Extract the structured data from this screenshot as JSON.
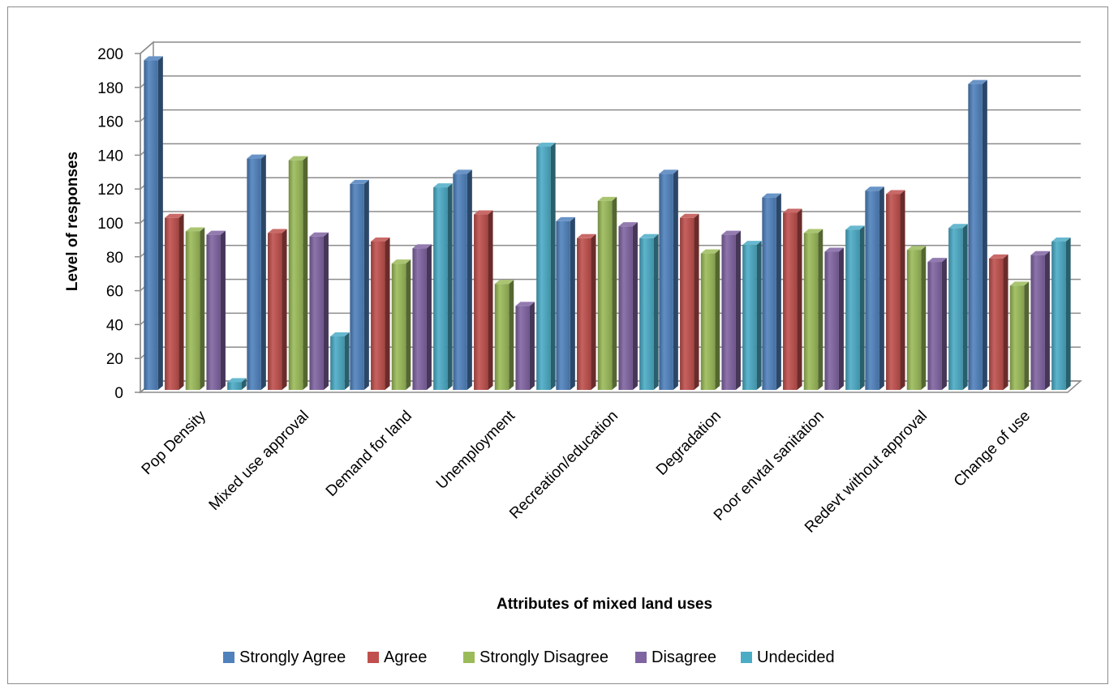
{
  "chart_data": {
    "type": "bar",
    "title": "",
    "xlabel": "Attributes of mixed land uses",
    "ylabel": "Level of responses",
    "ylim": [
      0,
      200
    ],
    "ytick_step": 20,
    "grid": true,
    "legend_position": "bottom",
    "categories": [
      "Pop Density",
      "Mixed use approval",
      "Demand for land",
      "Unemployment",
      "Recreation/education",
      "Degradation",
      "Poor envtal sanitation",
      "Redevt without approval",
      "Change of use"
    ],
    "series": [
      {
        "name": "Strongly Agree",
        "color": "#4f81bd",
        "values": [
          196,
          138,
          123,
          129,
          101,
          129,
          115,
          119,
          182
        ]
      },
      {
        "name": "Agree",
        "color": "#c0504d",
        "values": [
          103,
          94,
          89,
          105,
          91,
          103,
          106,
          117,
          79
        ]
      },
      {
        "name": "Strongly Disagree",
        "color": "#9bbb59",
        "values": [
          95,
          137,
          76,
          64,
          113,
          82,
          94,
          84,
          63
        ]
      },
      {
        "name": "Disagree",
        "color": "#8064a2",
        "values": [
          93,
          92,
          85,
          51,
          98,
          93,
          83,
          77,
          81
        ]
      },
      {
        "name": "Undecided",
        "color": "#4bacc6",
        "values": [
          6,
          33,
          121,
          145,
          91,
          87,
          96,
          97,
          89
        ]
      }
    ]
  }
}
